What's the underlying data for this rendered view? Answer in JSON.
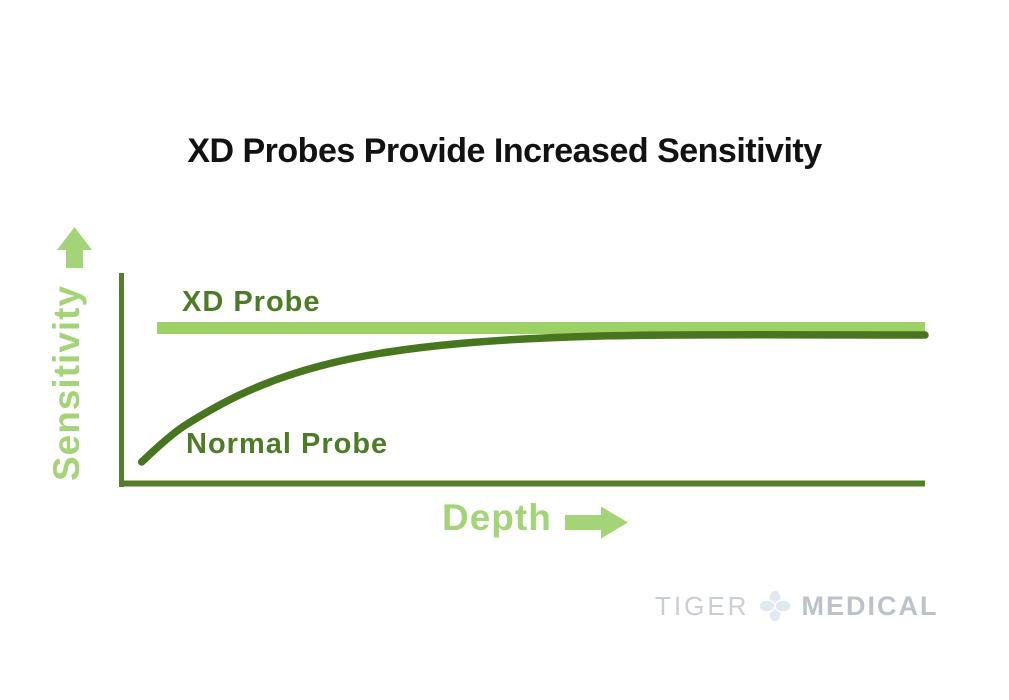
{
  "title": "XD Probes Provide Increased Sensitivity",
  "axes": {
    "y_label": "Sensitivity",
    "x_label": "Depth",
    "y_arrow_icon": "up-arrow-icon",
    "x_arrow_icon": "right-arrow-icon"
  },
  "series_labels": {
    "xd_probe": "XD Probe",
    "normal_probe": "Normal Probe"
  },
  "chart_data": {
    "type": "line",
    "title": "XD Probes Provide Increased Sensitivity",
    "xlabel": "Depth",
    "ylabel": "Sensitivity",
    "axis_numeric": false,
    "axis_note": "Conceptual diagram: axes carry no tick values; block arrows indicate increasing depth (right) and increasing sensitivity (up). Values below are normalized 0-1 estimates read from the drawing.",
    "xlim": [
      0,
      1
    ],
    "ylim": [
      0,
      1
    ],
    "grid": false,
    "legend": "inline-labels",
    "series": [
      {
        "name": "XD Probe",
        "color": "#9dd166",
        "shape": "flat line (constant high sensitivity at all depths)",
        "x": [
          0.046,
          1.0
        ],
        "y": [
          0.743,
          0.743
        ]
      },
      {
        "name": "Normal Probe",
        "color": "#48761e",
        "shape": "rises steeply from low sensitivity then asymptotically approaches the XD Probe line",
        "x": [
          0.027,
          0.062,
          0.099,
          0.149,
          0.211,
          0.286,
          0.373,
          0.472,
          0.584,
          0.72,
          1.0
        ],
        "y": [
          0.117,
          0.243,
          0.332,
          0.435,
          0.528,
          0.603,
          0.654,
          0.687,
          0.706,
          0.712,
          0.71
        ]
      }
    ]
  },
  "logo": {
    "brand_left": "TIGER",
    "brand_right": "MEDICAL",
    "icon": "clover-icon"
  },
  "colors": {
    "title_text": "#121212",
    "dark_green": "#4d7c27",
    "axis_green": "#567d2a",
    "curve_dark": "#48761e",
    "light_green_line": "#9dd166",
    "light_green_text": "#a4d478",
    "logo_gray_light": "#c9ced5",
    "logo_gray_bold": "#bdc2c9",
    "logo_icon_blue": "#dfe8f3"
  }
}
